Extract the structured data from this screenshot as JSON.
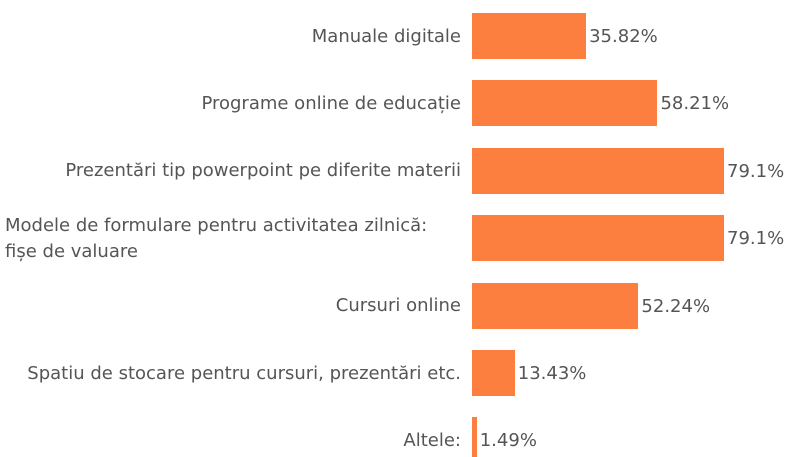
{
  "chart_data": {
    "type": "bar",
    "orientation": "horizontal",
    "categories": [
      "Manuale digitale",
      "Programe online de educație",
      "Prezentări tip powerpoint pe diferite materii",
      "Modele de formulare pentru activitatea zilnică: fișe de valuare",
      "Cursuri online",
      "Spatiu de stocare pentru cursuri, prezentări etc.",
      "Altele:"
    ],
    "values": [
      35.82,
      58.21,
      79.1,
      79.1,
      52.24,
      13.43,
      1.49
    ],
    "value_labels": [
      "35.82%",
      "58.21%",
      "79.1%",
      "79.1%",
      "52.24%",
      "13.43%",
      "1.49%"
    ],
    "color": "#fd7f40"
  }
}
